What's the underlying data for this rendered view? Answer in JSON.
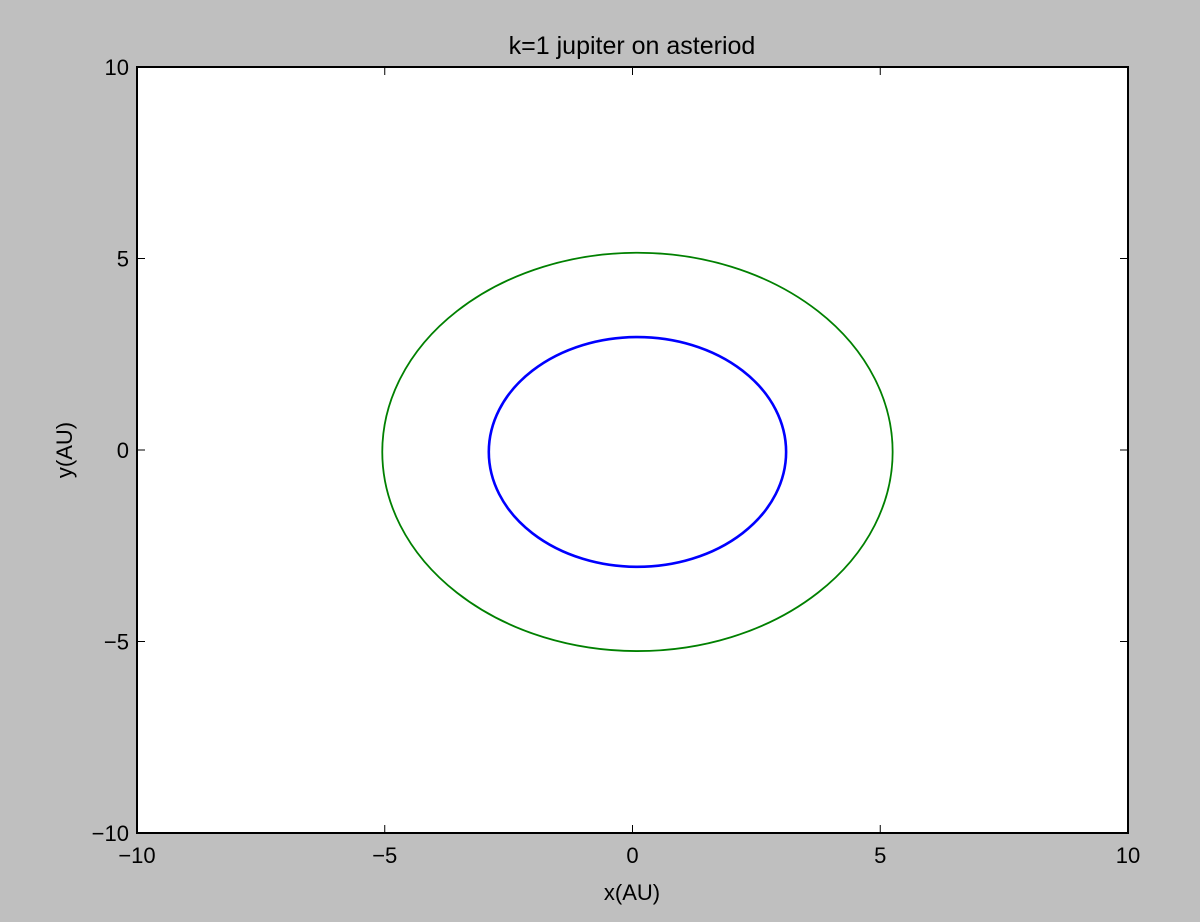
{
  "chart_data": {
    "type": "line",
    "title": "k=1 jupiter on asteriod",
    "xlabel": "x(AU)",
    "ylabel": "y(AU)",
    "xlim": [
      -10,
      10
    ],
    "ylim": [
      -10,
      10
    ],
    "xticks": [
      -10,
      -5,
      0,
      5,
      10
    ],
    "yticks": [
      -10,
      -5,
      0,
      5,
      10
    ],
    "xtick_labels": [
      "−10",
      "−5",
      "0",
      "5",
      "10"
    ],
    "ytick_labels": [
      "−10",
      "−5",
      "0",
      "5",
      "10"
    ],
    "grid": false,
    "legend": "none",
    "series": [
      {
        "color": "#008000",
        "center": [
          0.1,
          -0.05
        ],
        "semi_axes": [
          5.15,
          5.2
        ]
      },
      {
        "color": "#0000ff",
        "center": [
          0.1,
          -0.05
        ],
        "semi_axes": [
          3.0,
          3.0
        ]
      }
    ]
  },
  "colors": {
    "figure_background": "#bfbfbf",
    "axes_background": "#ffffff"
  }
}
